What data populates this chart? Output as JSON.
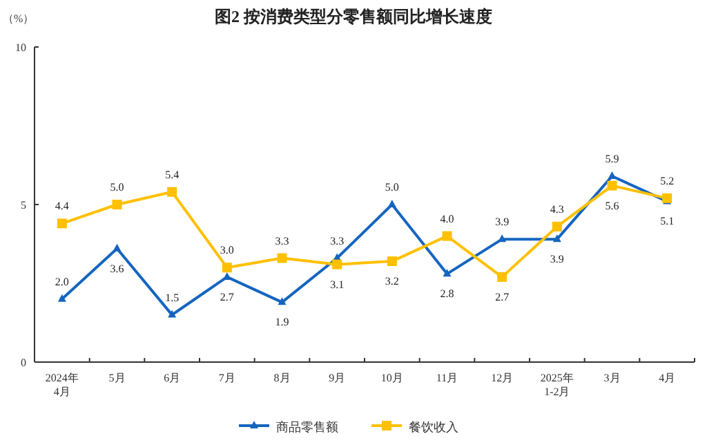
{
  "chart_data": {
    "type": "line",
    "title": "图2  按消费类型分零售额同比增长速度",
    "ylabel": "（%）",
    "categories": [
      "2024年\n4月",
      "5月",
      "6月",
      "7月",
      "8月",
      "9月",
      "10月",
      "11月",
      "12月",
      "2025年\n1-2月",
      "3月",
      "4月"
    ],
    "series": [
      {
        "name": "商品零售额",
        "color": "#1565c0",
        "marker": "triangle",
        "values": [
          2.0,
          3.6,
          1.5,
          2.7,
          1.9,
          3.3,
          5.0,
          2.8,
          3.9,
          3.9,
          5.9,
          5.1
        ],
        "value_labels": [
          "2.0",
          "3.6",
          "1.5",
          "2.7",
          "1.9",
          "3.3",
          "5.0",
          "2.8",
          "3.9",
          "3.9",
          "5.9",
          "5.1"
        ]
      },
      {
        "name": "餐饮收入",
        "color": "#ffc000",
        "marker": "square",
        "values": [
          4.4,
          5.0,
          5.4,
          3.0,
          3.3,
          3.1,
          3.2,
          4.0,
          2.7,
          4.3,
          5.6,
          5.2
        ],
        "value_labels": [
          "4.4",
          "5.0",
          "5.4",
          "3.0",
          "3.3",
          "3.1",
          "3.2",
          "4.0",
          "2.7",
          "4.3",
          "5.6",
          "5.2"
        ]
      }
    ],
    "ylim": [
      0,
      10
    ],
    "yticks": [
      0,
      5,
      10
    ],
    "grid": false,
    "legend": "bottom",
    "line_style": "solid"
  }
}
